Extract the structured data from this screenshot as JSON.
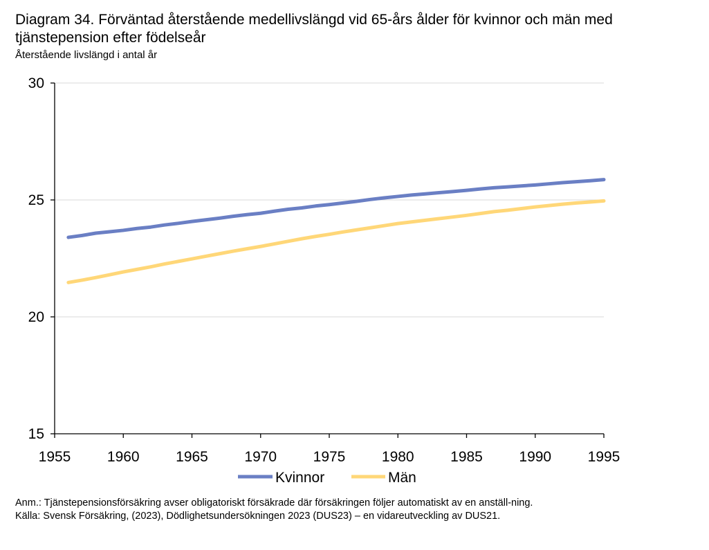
{
  "title": "Diagram 34. Förväntad återstående medellivslängd vid 65-års ålder för kvinnor och män med tjänstepension efter födelseår",
  "subtitle": "Återstående livslängd i antal år",
  "notes": {
    "anm": "Anm.: Tjänstepensionsförsäkring avser obligatoriskt försäkrade där försäkringen följer automatiskt av en anställ-ning.",
    "source": "Källa: Svensk Försäkring, (2023), Dödlighetsundersökningen 2023 (DUS23) – en vidareutveckling av DUS21."
  },
  "colors": {
    "kvinnor": "#6a7fc4",
    "man": "#ffd778",
    "grid": "#d9d9d9",
    "axis": "#000000"
  },
  "chart_data": {
    "type": "line",
    "title": "Diagram 34. Förväntad återstående medellivslängd vid 65-års ålder för kvinnor och män med tjänstepension efter födelseår",
    "ylabel": "Återstående livslängd i antal år",
    "xlabel": "",
    "xlim": [
      1955,
      1995
    ],
    "ylim": [
      15,
      30
    ],
    "xticks": [
      1955,
      1960,
      1965,
      1970,
      1975,
      1980,
      1985,
      1990,
      1995
    ],
    "yticks": [
      15,
      20,
      25,
      30
    ],
    "grid": "horizontal",
    "legend": "bottom",
    "x": [
      1956,
      1957,
      1958,
      1959,
      1960,
      1961,
      1962,
      1963,
      1964,
      1965,
      1966,
      1967,
      1968,
      1969,
      1970,
      1971,
      1972,
      1973,
      1974,
      1975,
      1976,
      1977,
      1978,
      1979,
      1980,
      1981,
      1982,
      1983,
      1984,
      1985,
      1986,
      1987,
      1988,
      1989,
      1990,
      1991,
      1992,
      1993,
      1994,
      1995
    ],
    "series": [
      {
        "name": "Kvinnor",
        "color": "#6a7fc4",
        "values": [
          23.4,
          23.48,
          23.58,
          23.64,
          23.7,
          23.78,
          23.84,
          23.93,
          24.0,
          24.08,
          24.15,
          24.22,
          24.3,
          24.37,
          24.43,
          24.52,
          24.6,
          24.66,
          24.74,
          24.8,
          24.87,
          24.94,
          25.02,
          25.09,
          25.15,
          25.21,
          25.26,
          25.31,
          25.36,
          25.41,
          25.47,
          25.52,
          25.56,
          25.6,
          25.64,
          25.69,
          25.74,
          25.78,
          25.82,
          25.87
        ]
      },
      {
        "name": "Män",
        "color": "#ffd778",
        "values": [
          21.47,
          21.57,
          21.68,
          21.8,
          21.92,
          22.03,
          22.14,
          22.26,
          22.37,
          22.48,
          22.59,
          22.7,
          22.81,
          22.91,
          23.01,
          23.12,
          23.23,
          23.34,
          23.44,
          23.53,
          23.63,
          23.72,
          23.81,
          23.9,
          23.99,
          24.06,
          24.13,
          24.2,
          24.27,
          24.34,
          24.42,
          24.5,
          24.56,
          24.63,
          24.7,
          24.76,
          24.82,
          24.87,
          24.91,
          24.96
        ]
      }
    ]
  }
}
